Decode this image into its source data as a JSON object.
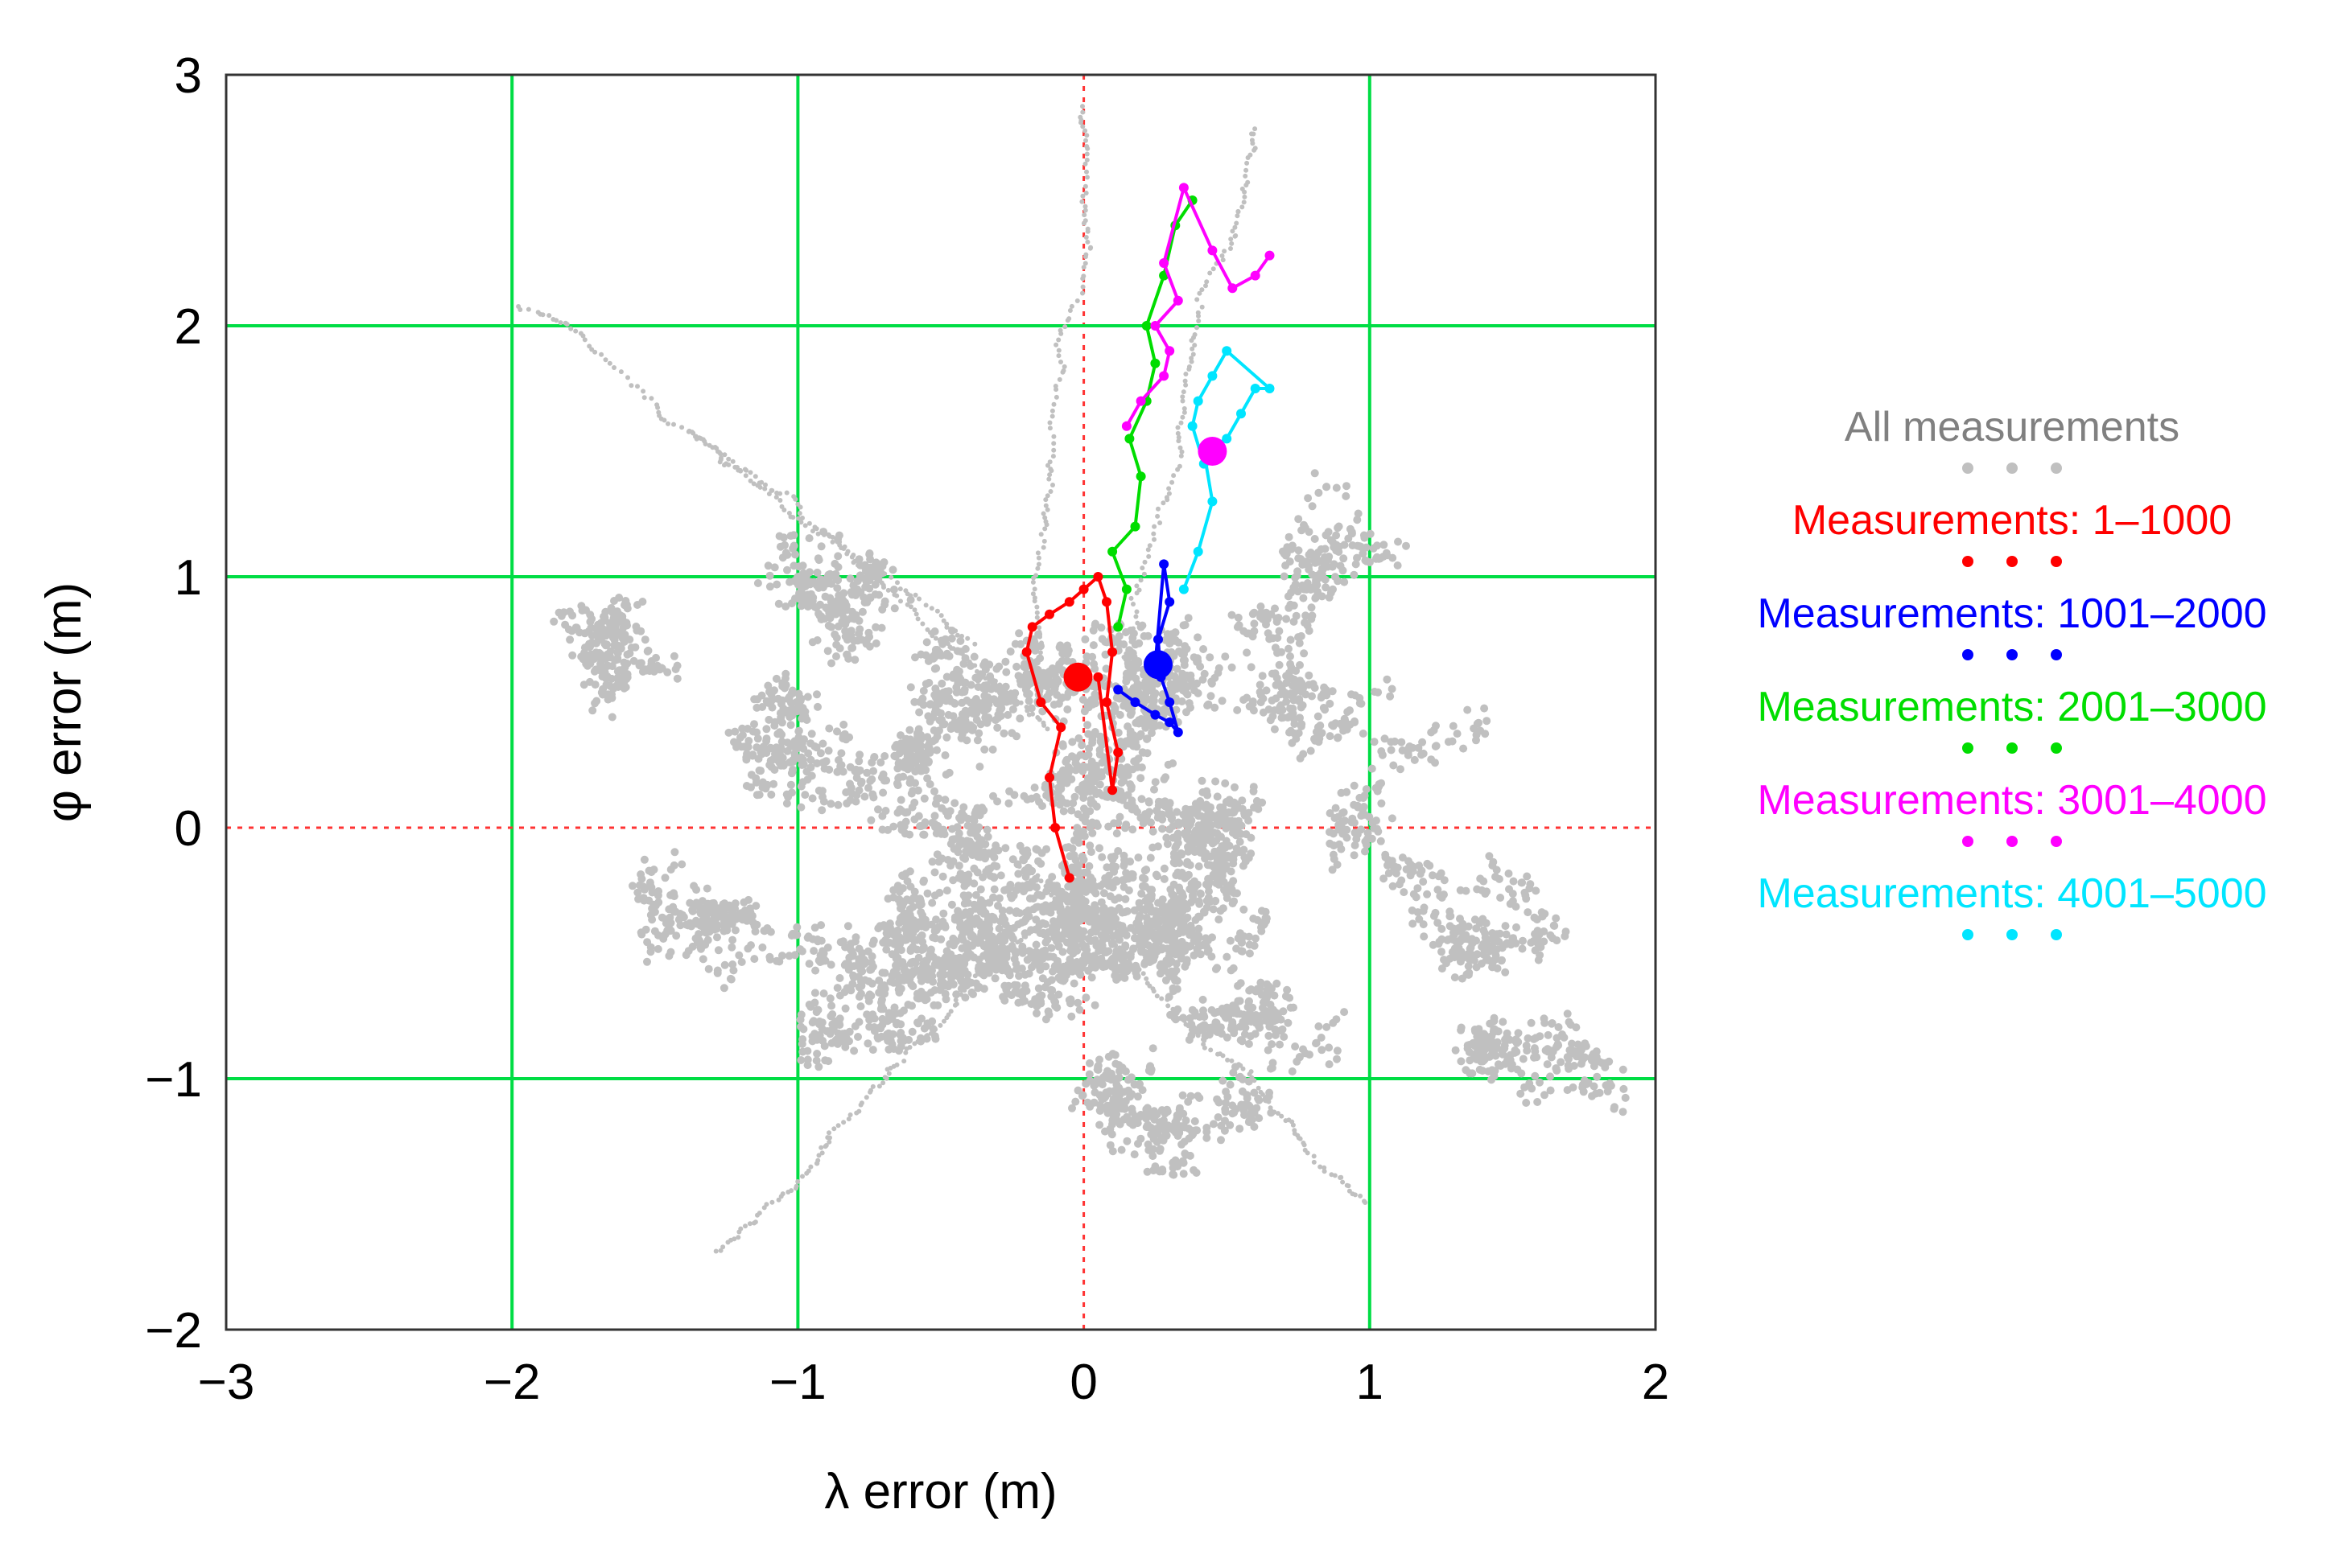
{
  "chart_data": {
    "type": "scatter",
    "xlabel": "λ error (m)",
    "ylabel": "φ error (m)",
    "xlim": [
      -3,
      2
    ],
    "ylim": [
      -2,
      3
    ],
    "x_ticks": [
      "−3",
      "−2",
      "−1",
      "0",
      "1",
      "2"
    ],
    "y_ticks": [
      "3",
      "2",
      "1",
      "0",
      "−1",
      "−2"
    ],
    "grid": true,
    "grid_color": "#00dd44",
    "zero_line_color": "#ff3333",
    "legend_position": "right",
    "series": [
      {
        "name": "All measurements",
        "color": "#c0c0c0",
        "x": [
          -0.6,
          -0.4,
          -0.2,
          0.0,
          0.2,
          0.4,
          0.6,
          -0.5,
          -0.3,
          0.1,
          0.3,
          0.5,
          -0.7,
          0.7,
          -0.1,
          0.2,
          -1.0,
          1.0,
          -1.3,
          1.3,
          -0.8,
          0.8,
          -1.6,
          1.5
        ],
        "y": [
          -0.4,
          -0.3,
          -0.5,
          -0.2,
          -0.4,
          -0.3,
          -0.5,
          0.2,
          0.4,
          0.3,
          0.5,
          0.1,
          -0.8,
          -0.7,
          0.6,
          -1.0,
          0.4,
          0.5,
          -0.3,
          -0.2,
          1.0,
          1.1,
          0.8,
          -0.8
        ]
      },
      {
        "name": "Measurements: 1–1000",
        "color": "#ff0000",
        "x": [
          -0.05,
          -0.1,
          -0.12,
          -0.08,
          -0.15,
          -0.2,
          -0.18,
          -0.12,
          -0.05,
          0.0,
          0.05,
          0.08,
          0.1,
          0.08,
          0.12,
          0.1,
          0.05
        ],
        "y": [
          -0.2,
          0.0,
          0.2,
          0.4,
          0.5,
          0.7,
          0.8,
          0.85,
          0.9,
          0.95,
          1.0,
          0.9,
          0.7,
          0.5,
          0.3,
          0.15,
          0.6
        ]
      },
      {
        "name": "Measurements: 1001–2000",
        "color": "#0000ff",
        "x": [
          0.12,
          0.18,
          0.25,
          0.3,
          0.33,
          0.3,
          0.27,
          0.26,
          0.3,
          0.28,
          0.25
        ],
        "y": [
          0.55,
          0.5,
          0.45,
          0.42,
          0.38,
          0.5,
          0.6,
          0.75,
          0.9,
          1.05,
          0.65
        ]
      },
      {
        "name": "Measurements: 2001–3000",
        "color": "#00dd00",
        "x": [
          0.12,
          0.15,
          0.1,
          0.18,
          0.2,
          0.16,
          0.22,
          0.25,
          0.22,
          0.28,
          0.32,
          0.38
        ],
        "y": [
          0.8,
          0.95,
          1.1,
          1.2,
          1.4,
          1.55,
          1.7,
          1.85,
          2.0,
          2.2,
          2.4,
          2.5
        ]
      },
      {
        "name": "Measurements: 3001–4000",
        "color": "#ff00ff",
        "x": [
          0.15,
          0.2,
          0.28,
          0.3,
          0.25,
          0.33,
          0.28,
          0.35,
          0.45,
          0.52,
          0.6,
          0.65
        ],
        "y": [
          1.6,
          1.7,
          1.8,
          1.9,
          2.0,
          2.1,
          2.25,
          2.55,
          2.3,
          2.15,
          2.2,
          2.28
        ]
      },
      {
        "name": "Measurements: 4001–5000",
        "color": "#00e5ff",
        "x": [
          0.35,
          0.4,
          0.45,
          0.42,
          0.5,
          0.55,
          0.6,
          0.65,
          0.5,
          0.45,
          0.4,
          0.38,
          0.42
        ],
        "y": [
          0.95,
          1.1,
          1.3,
          1.5,
          1.55,
          1.65,
          1.75,
          1.75,
          1.9,
          1.8,
          1.7,
          1.6,
          1.45
        ]
      }
    ],
    "series_markers": [
      {
        "name": "Measurements: 1–1000",
        "x": -0.02,
        "y": 0.6
      },
      {
        "name": "Measurements: 1001–2000",
        "x": 0.26,
        "y": 0.65
      },
      {
        "name": "Measurements: 3001–4000",
        "x": 0.45,
        "y": 1.5
      }
    ]
  }
}
